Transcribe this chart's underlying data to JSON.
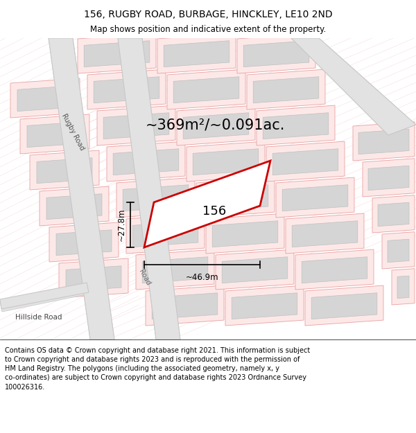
{
  "title": "156, RUGBY ROAD, BURBAGE, HINCKLEY, LE10 2ND",
  "subtitle": "Map shows position and indicative extent of the property.",
  "footer": "Contains OS data © Crown copyright and database right 2021. This information is subject\nto Crown copyright and database rights 2023 and is reproduced with the permission of\nHM Land Registry. The polygons (including the associated geometry, namely x, y\nco-ordinates) are subject to Crown copyright and database rights 2023 Ordnance Survey\n100026316.",
  "area_text": "~369m²/~0.091ac.",
  "label_156": "156",
  "dim_width": "~46.9m",
  "dim_height": "~27.8m",
  "road_label": "Rugby Road",
  "hillside_label": "Hillside Road",
  "bg_color": "#ffffff",
  "title_fontsize": 10,
  "subtitle_fontsize": 8.5,
  "footer_fontsize": 7.0,
  "pink_fc": "#fde8e8",
  "pink_ec": "#e8a0a0",
  "gray_fc": "#d5d5d5",
  "gray_ec": "#c0c0c0",
  "road_fc": "#e2e2e2",
  "road_ec": "#c8c8c8",
  "red_ec": "#cc0000",
  "hatch_color": "#f0b8b8"
}
